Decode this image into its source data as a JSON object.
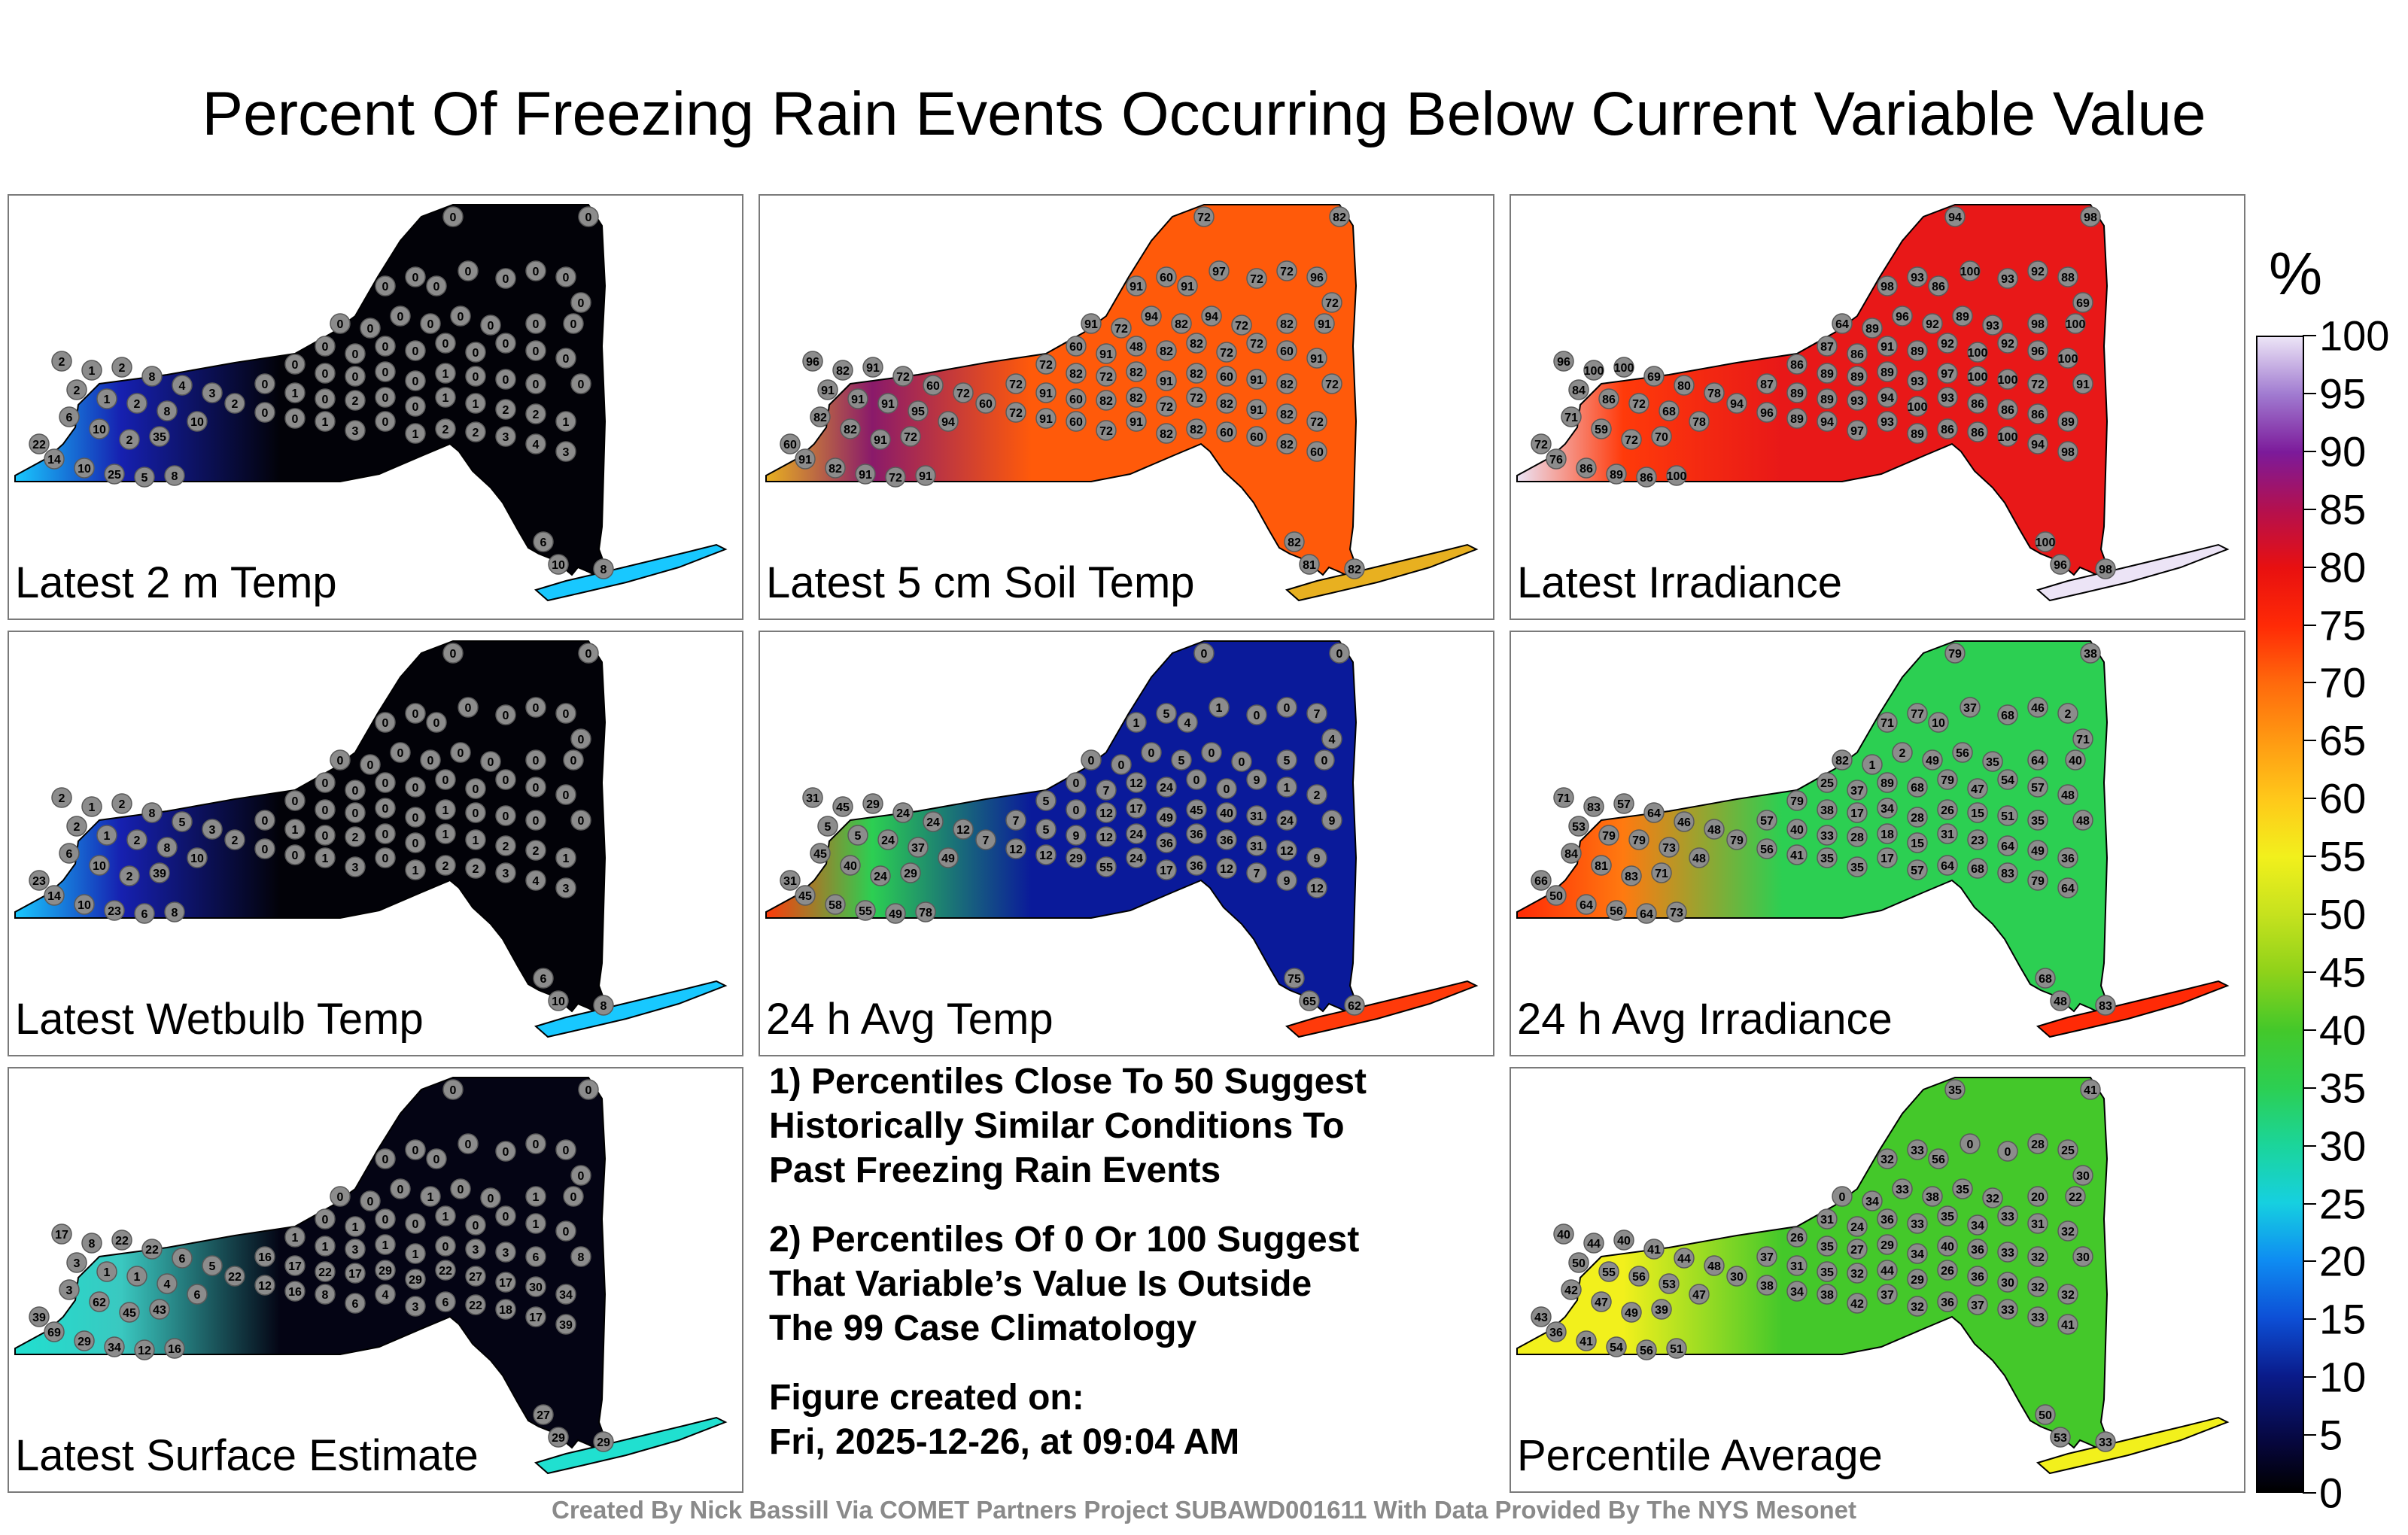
{
  "title": "Percent Of Freezing Rain Events Occurring Below Current Variable Value",
  "colorbar": {
    "unit": "%",
    "ticks": [
      "100",
      "95",
      "90",
      "85",
      "80",
      "75",
      "70",
      "65",
      "60",
      "55",
      "50",
      "45",
      "40",
      "35",
      "30",
      "25",
      "20",
      "15",
      "10",
      "5",
      "0"
    ],
    "range": [
      0,
      100
    ],
    "colors": [
      "#000000",
      "#0a1b8a",
      "#0e8cf2",
      "#1bd59a",
      "#44c82a",
      "#f2f01c",
      "#ff6a0c",
      "#e81010",
      "#7c1a9a",
      "#ece4f6"
    ]
  },
  "panels": [
    {
      "label": "Latest 2 m Temp",
      "base_color": "#020208",
      "west_color": "#1620b0",
      "edge_color": "#18c8ff",
      "values": [
        "0",
        "0",
        "0",
        "0",
        "0",
        "0",
        "0",
        "0",
        "0",
        "0",
        "0",
        "0",
        "0",
        "0",
        "0",
        "0",
        "0",
        "0",
        "0",
        "0",
        "0",
        "0",
        "0",
        "0",
        "0",
        "0",
        "0",
        "0",
        "0",
        "0",
        "0",
        "0",
        "1",
        "0",
        "0",
        "0",
        "0",
        "0",
        "1",
        "0",
        "2",
        "0",
        "0",
        "1",
        "1",
        "2",
        "2",
        "1",
        "2",
        "0",
        "0",
        "1",
        "3",
        "0",
        "1",
        "2",
        "2",
        "3",
        "4",
        "3",
        "2",
        "1",
        "2",
        "8",
        "4",
        "3",
        "2",
        "1",
        "2",
        "8",
        "10",
        "6",
        "10",
        "2",
        "35",
        "22",
        "14",
        "10",
        "25",
        "5",
        "8",
        "6",
        "10",
        "8"
      ]
    },
    {
      "label": "Latest 5 cm Soil Temp",
      "base_color": "#ff5a0a",
      "west_color": "#8a1a6a",
      "edge_color": "#e8b020",
      "values": [
        "72",
        "82",
        "91",
        "60",
        "91",
        "97",
        "72",
        "72",
        "96",
        "72",
        "91",
        "72",
        "94",
        "82",
        "94",
        "72",
        "82",
        "91",
        "60",
        "91",
        "48",
        "82",
        "82",
        "72",
        "72",
        "60",
        "91",
        "72",
        "82",
        "72",
        "82",
        "91",
        "82",
        "60",
        "91",
        "82",
        "72",
        "72",
        "91",
        "60",
        "82",
        "82",
        "72",
        "72",
        "82",
        "91",
        "82",
        "72",
        "60",
        "72",
        "91",
        "60",
        "72",
        "91",
        "82",
        "82",
        "60",
        "60",
        "82",
        "60",
        "96",
        "82",
        "91",
        "72",
        "60",
        "72",
        "91",
        "91",
        "91",
        "95",
        "94",
        "82",
        "82",
        "91",
        "72",
        "60",
        "91",
        "82",
        "91",
        "72",
        "91",
        "82",
        "81",
        "82"
      ]
    },
    {
      "label": "Latest Irradiance",
      "base_color": "#e81818",
      "west_color": "#ff3a0a",
      "edge_color": "#ece4f6",
      "values": [
        "94",
        "98",
        "98",
        "93",
        "86",
        "100",
        "93",
        "92",
        "88",
        "69",
        "64",
        "89",
        "96",
        "92",
        "89",
        "93",
        "98",
        "100",
        "87",
        "86",
        "91",
        "89",
        "92",
        "100",
        "92",
        "96",
        "100",
        "86",
        "89",
        "89",
        "89",
        "93",
        "97",
        "100",
        "100",
        "72",
        "91",
        "87",
        "89",
        "89",
        "93",
        "94",
        "100",
        "93",
        "86",
        "86",
        "86",
        "89",
        "94",
        "96",
        "89",
        "94",
        "97",
        "93",
        "89",
        "86",
        "86",
        "100",
        "94",
        "98",
        "96",
        "100",
        "100",
        "69",
        "80",
        "78",
        "84",
        "86",
        "72",
        "68",
        "78",
        "71",
        "59",
        "72",
        "70",
        "72",
        "76",
        "86",
        "89",
        "86",
        "100",
        "100",
        "96",
        "98"
      ]
    },
    {
      "label": "Latest Wetbulb Temp",
      "base_color": "#020208",
      "west_color": "#1620b0",
      "edge_color": "#18c8ff",
      "values": [
        "0",
        "0",
        "0",
        "0",
        "0",
        "0",
        "0",
        "0",
        "0",
        "0",
        "0",
        "0",
        "0",
        "0",
        "0",
        "0",
        "0",
        "0",
        "0",
        "0",
        "0",
        "0",
        "0",
        "0",
        "0",
        "0",
        "0",
        "0",
        "0",
        "0",
        "0",
        "0",
        "1",
        "0",
        "0",
        "0",
        "0",
        "0",
        "1",
        "0",
        "2",
        "0",
        "0",
        "1",
        "1",
        "2",
        "2",
        "1",
        "2",
        "0",
        "0",
        "1",
        "3",
        "0",
        "1",
        "2",
        "2",
        "3",
        "4",
        "3",
        "2",
        "1",
        "2",
        "8",
        "5",
        "3",
        "2",
        "1",
        "2",
        "8",
        "10",
        "6",
        "10",
        "2",
        "39",
        "23",
        "14",
        "10",
        "23",
        "6",
        "8",
        "6",
        "10",
        "8"
      ]
    },
    {
      "label": "24 h Avg Temp",
      "base_color": "#0a1a9a",
      "west_color": "#2ccf52",
      "edge_color": "#ff3a0a",
      "values": [
        "0",
        "0",
        "1",
        "5",
        "4",
        "1",
        "0",
        "0",
        "7",
        "4",
        "0",
        "0",
        "0",
        "5",
        "0",
        "0",
        "5",
        "0",
        "0",
        "7",
        "12",
        "24",
        "0",
        "0",
        "9",
        "1",
        "2",
        "5",
        "0",
        "12",
        "17",
        "49",
        "45",
        "40",
        "31",
        "24",
        "9",
        "7",
        "5",
        "9",
        "12",
        "24",
        "36",
        "36",
        "36",
        "31",
        "12",
        "9",
        "7",
        "12",
        "12",
        "29",
        "55",
        "24",
        "17",
        "36",
        "12",
        "7",
        "9",
        "12",
        "31",
        "45",
        "29",
        "24",
        "24",
        "12",
        "5",
        "5",
        "24",
        "37",
        "49",
        "45",
        "40",
        "24",
        "29",
        "31",
        "45",
        "58",
        "55",
        "49",
        "78",
        "75",
        "65",
        "62"
      ]
    },
    {
      "label": "24 h Avg Irradiance",
      "base_color": "#2ccf52",
      "west_color": "#ff7a10",
      "edge_color": "#ff2a06",
      "values": [
        "79",
        "38",
        "71",
        "77",
        "10",
        "37",
        "68",
        "46",
        "2",
        "71",
        "82",
        "1",
        "2",
        "49",
        "56",
        "35",
        "64",
        "40",
        "25",
        "37",
        "89",
        "68",
        "79",
        "47",
        "54",
        "57",
        "48",
        "79",
        "38",
        "17",
        "34",
        "28",
        "26",
        "15",
        "51",
        "35",
        "48",
        "57",
        "40",
        "33",
        "28",
        "18",
        "15",
        "31",
        "23",
        "64",
        "49",
        "36",
        "79",
        "56",
        "41",
        "35",
        "35",
        "17",
        "57",
        "64",
        "68",
        "83",
        "79",
        "64",
        "71",
        "83",
        "57",
        "64",
        "46",
        "48",
        "53",
        "79",
        "79",
        "73",
        "48",
        "84",
        "81",
        "83",
        "71",
        "66",
        "50",
        "64",
        "56",
        "64",
        "73",
        "68",
        "48",
        "83"
      ]
    },
    {
      "label": "Latest Surface Estimate",
      "base_color": "#040414",
      "west_color": "#3ac8c0",
      "edge_color": "#20e0d0",
      "values": [
        "0",
        "0",
        "0",
        "0",
        "0",
        "0",
        "0",
        "0",
        "0",
        "0",
        "0",
        "0",
        "0",
        "1",
        "0",
        "0",
        "1",
        "0",
        "0",
        "1",
        "0",
        "0",
        "1",
        "0",
        "0",
        "1",
        "0",
        "1",
        "1",
        "3",
        "1",
        "1",
        "0",
        "3",
        "3",
        "6",
        "8",
        "16",
        "17",
        "22",
        "17",
        "29",
        "29",
        "22",
        "27",
        "17",
        "30",
        "34",
        "22",
        "12",
        "16",
        "8",
        "6",
        "4",
        "3",
        "6",
        "22",
        "18",
        "17",
        "39",
        "17",
        "8",
        "22",
        "22",
        "6",
        "5",
        "3",
        "1",
        "1",
        "4",
        "6",
        "3",
        "62",
        "45",
        "43",
        "39",
        "69",
        "29",
        "34",
        "12",
        "16",
        "27",
        "29",
        "29"
      ]
    },
    {
      "label": "Percentile Average",
      "base_color": "#44c82a",
      "west_color": "#f2f01c",
      "edge_color": "#f2f01c",
      "values": [
        "35",
        "41",
        "32",
        "33",
        "56",
        "0",
        "0",
        "28",
        "25",
        "30",
        "0",
        "34",
        "33",
        "38",
        "35",
        "32",
        "20",
        "22",
        "31",
        "24",
        "36",
        "33",
        "35",
        "34",
        "33",
        "31",
        "32",
        "26",
        "35",
        "27",
        "29",
        "34",
        "40",
        "36",
        "33",
        "32",
        "30",
        "37",
        "31",
        "35",
        "32",
        "44",
        "29",
        "26",
        "36",
        "30",
        "32",
        "32",
        "30",
        "38",
        "34",
        "38",
        "42",
        "37",
        "32",
        "36",
        "37",
        "33",
        "33",
        "41",
        "40",
        "44",
        "40",
        "41",
        "44",
        "48",
        "50",
        "55",
        "56",
        "53",
        "47",
        "42",
        "47",
        "49",
        "39",
        "43",
        "36",
        "41",
        "54",
        "56",
        "51",
        "50",
        "53",
        "33"
      ]
    }
  ],
  "notes": {
    "line1": "1) Percentiles Close To 50 Suggest",
    "line2": "Historically Similar Conditions To",
    "line3": "Past Freezing Rain Events",
    "line4": "2) Percentiles Of 0 Or 100 Suggest",
    "line5": "That Variable’s Value Is Outside",
    "line6": "The 99 Case Climatology",
    "line7": "Figure created on:",
    "line8": "Fri, 2025-12-26, at 09:04 AM"
  },
  "credit": "Created By Nick Bassill Via COMET Partners Project SUBAWD001611 With Data Provided By The NYS Mesonet"
}
